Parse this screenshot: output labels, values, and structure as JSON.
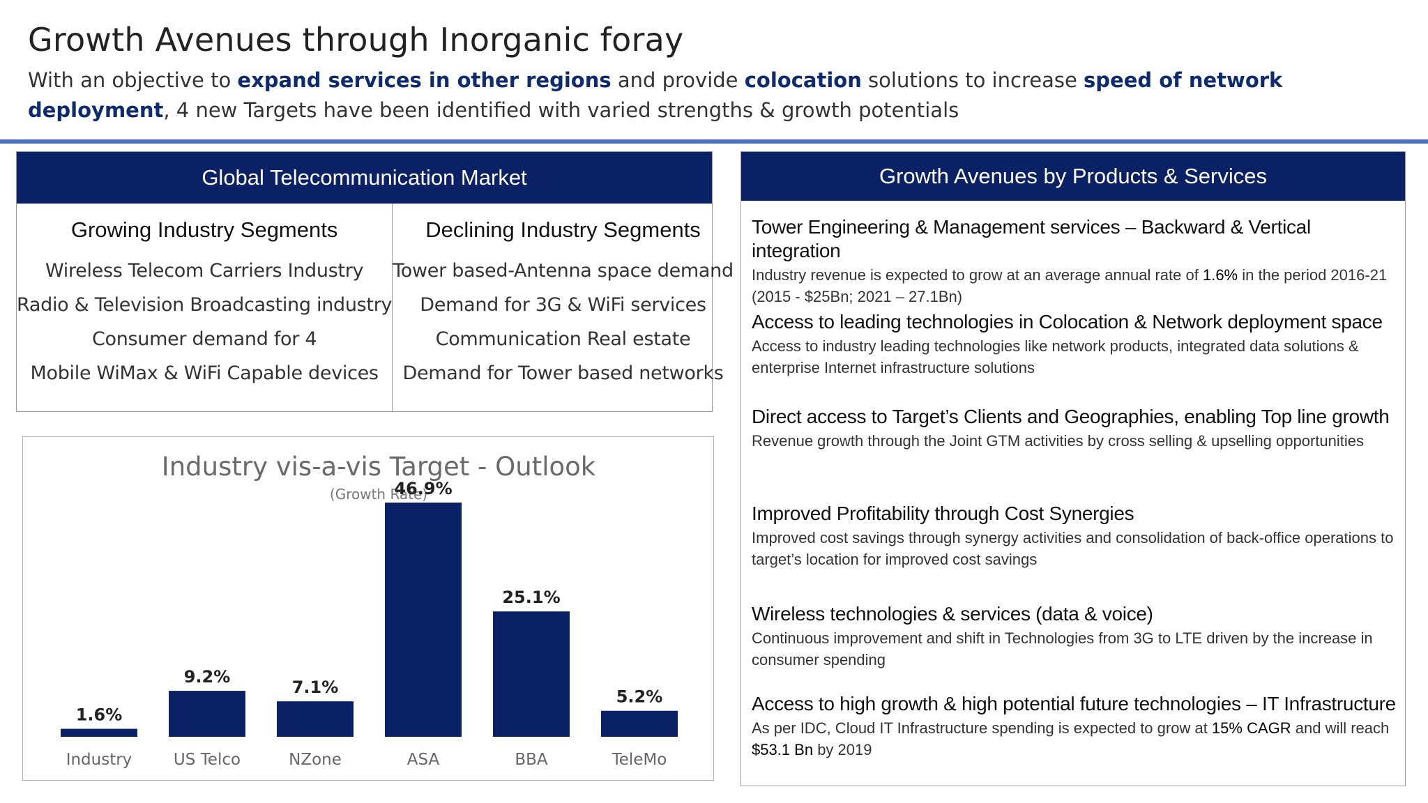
{
  "header": {
    "title": "Growth Avenues through Inorganic foray",
    "subtitle": {
      "t1": "With an objective to ",
      "b1": "expand services in other regions",
      "t2": " and provide ",
      "b2": "colocation",
      "t3": " solutions to increase ",
      "b3": "speed of network deployment",
      "t4": ", 4 new Targets have been identified with varied strengths & growth potentials"
    }
  },
  "market": {
    "title": "Global Telecommunication Market",
    "growing": {
      "heading": "Growing Industry Segments",
      "items": [
        "Wireless Telecom Carriers Industry",
        "Radio & Television Broadcasting industry",
        "Consumer demand for 4",
        "Mobile WiMax & WiFi Capable devices"
      ]
    },
    "declining": {
      "heading": "Declining Industry Segments",
      "items": [
        "Tower based-Antenna space demand",
        "Demand for 3G & WiFi services",
        "Communication Real estate",
        "Demand for Tower based networks"
      ]
    }
  },
  "chart_data": {
    "type": "bar",
    "title": "Industry vis-a-vis Target - Outlook",
    "subtitle": "(Growth Rate)",
    "categories": [
      "Industry",
      "US Telco",
      "NZone",
      "ASA",
      "BBA",
      "TeleMo"
    ],
    "values": [
      1.6,
      9.2,
      7.1,
      46.9,
      25.1,
      5.2
    ],
    "data_labels": [
      "1.6%",
      "9.2%",
      "7.1%",
      "46.9%",
      "25.1%",
      "5.2%"
    ],
    "xlabel": "",
    "ylabel": "",
    "ylim": [
      0,
      46.9
    ],
    "grid": false,
    "legend": "none",
    "color": "#0b2166"
  },
  "growth": {
    "title": "Growth Avenues by Products & Services",
    "avenues": [
      {
        "title": "Tower Engineering & Management services – Backward & Vertical integration",
        "d1": "Industry revenue is expected to grow at an average annual rate of ",
        "b1": "1.6%",
        "d2": " in the period 2016-21 (2015 - $25Bn; 2021 – 27.1Bn)",
        "b2": "",
        "d3": ""
      },
      {
        "title": "Access to leading technologies in Colocation & Network deployment space",
        "d1": "Access to industry leading technologies like network products, integrated data solutions & enterprise Internet infrastructure solutions",
        "b1": "",
        "d2": "",
        "b2": "",
        "d3": ""
      },
      {
        "title": "Direct access to Target’s Clients and Geographies, enabling Top line growth",
        "d1": "Revenue growth through the Joint GTM activities by cross selling & upselling opportunities",
        "b1": "",
        "d2": "",
        "b2": "",
        "d3": ""
      },
      {
        "title": "Improved Profitability through Cost Synergies",
        "d1": "Improved cost savings through synergy activities and consolidation of back-office operations to target’s location for improved cost savings",
        "b1": "",
        "d2": "",
        "b2": "",
        "d3": ""
      },
      {
        "title": "Wireless technologies & services (data & voice)",
        "d1": "Continuous improvement and shift in Technologies from 3G to LTE driven by the increase in consumer spending",
        "b1": "",
        "d2": "",
        "b2": "",
        "d3": ""
      },
      {
        "title": "Access to high growth & high potential future technologies – IT Infrastructure",
        "d1": "As per IDC, Cloud IT Infrastructure spending is expected to grow at ",
        "b1": "15% CAGR",
        "d2": " and will reach ",
        "b2": "$53.1 Bn",
        "d3": " by 2019"
      }
    ]
  }
}
